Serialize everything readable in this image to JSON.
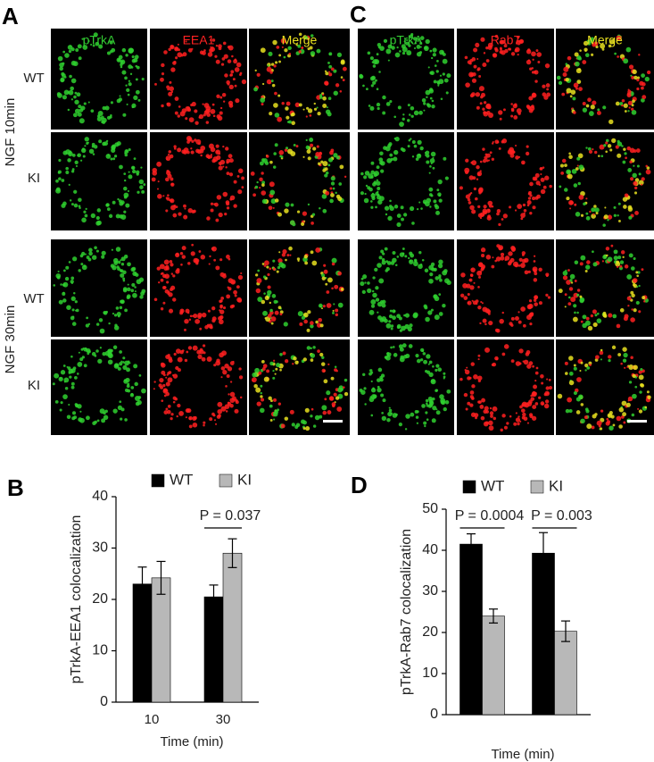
{
  "figure": {
    "panel_labels": [
      "A",
      "B",
      "C",
      "D"
    ],
    "panel_a": {
      "columns": [
        "pTrkA",
        "EEA1",
        "Merge"
      ],
      "row_groups": [
        {
          "label": "NGF 10min",
          "rows": [
            "WT",
            "KI"
          ]
        },
        {
          "label": "NGF 30min",
          "rows": [
            "WT",
            "KI"
          ]
        }
      ]
    },
    "panel_c": {
      "columns": [
        "pTrkA",
        "Rab7",
        "Merge"
      ]
    }
  },
  "chart_data": [
    {
      "type": "bar",
      "ylabel": "pTrkA-EEA1 colocalization",
      "xlabel": "Time (min)",
      "categories": [
        "10",
        "30"
      ],
      "series": [
        {
          "name": "WT",
          "color": "#000000",
          "values": [
            23,
            20.5
          ],
          "errors": [
            3.3,
            2.3
          ]
        },
        {
          "name": "KI",
          "color": "#b8b8b8",
          "values": [
            24.2,
            29
          ],
          "errors": [
            3.2,
            2.8
          ]
        }
      ],
      "significance": [
        null,
        "P = 0.037"
      ],
      "ylim": [
        0,
        40
      ],
      "yticks": [
        0,
        10,
        20,
        30,
        40
      ]
    },
    {
      "type": "bar",
      "ylabel": "pTrkA-Rab7 colocalization",
      "xlabel": "Time (min)",
      "categories": [
        null,
        null
      ],
      "series": [
        {
          "name": "WT",
          "color": "#000000",
          "values": [
            41.5,
            39.3
          ],
          "errors": [
            2.5,
            5
          ]
        },
        {
          "name": "KI",
          "color": "#b8b8b8",
          "values": [
            24,
            20.3
          ],
          "errors": [
            1.7,
            2.5
          ]
        }
      ],
      "significance": [
        "P = 0.0004",
        "P = 0.003"
      ],
      "ylim": [
        0,
        50
      ],
      "yticks": [
        0,
        10,
        20,
        30,
        40,
        50
      ]
    }
  ]
}
